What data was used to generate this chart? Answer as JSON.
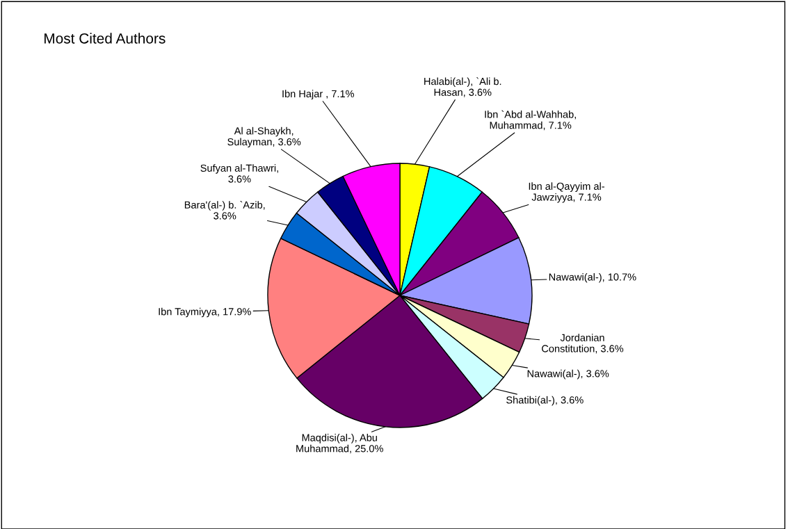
{
  "chart_data": {
    "type": "pie",
    "title": "Most Cited Authors",
    "categories": [
      "Halabi(al-), `Ali b.\nHasan, 3.6%",
      "Ibn `Abd al-Wahhab,\nMuhammad, 7.1%",
      "Ibn al-Qayyim al-\nJawziyya, 7.1%",
      "Nawawi(al-), 10.7%",
      "Jordanian\nConstitution, 3.6%",
      "Nawawi(al-), 3.6%",
      "Shatibi(al-), 3.6%",
      "Maqdisi(al-), Abu\nMuhammad, 25.0%",
      "Ibn Taymiyya, 17.9%",
      "Bara'(al-) b. `Azib,\n3.6%",
      "Sufyan al-Thawri,\n3.6%",
      "Al al-Shaykh,\nSulayman, 3.6%",
      "Ibn Hajar , 7.1%"
    ],
    "values": [
      3.6,
      7.1,
      7.1,
      10.7,
      3.6,
      3.6,
      3.6,
      25.0,
      17.9,
      3.6,
      3.6,
      3.6,
      7.1
    ],
    "colors": [
      "#ffff00",
      "#00ffff",
      "#800080",
      "#9999ff",
      "#993366",
      "#ffffcc",
      "#ccffff",
      "#660066",
      "#ff8080",
      "#0066cc",
      "#ccccff",
      "#000080",
      "#ff00ff"
    ]
  }
}
